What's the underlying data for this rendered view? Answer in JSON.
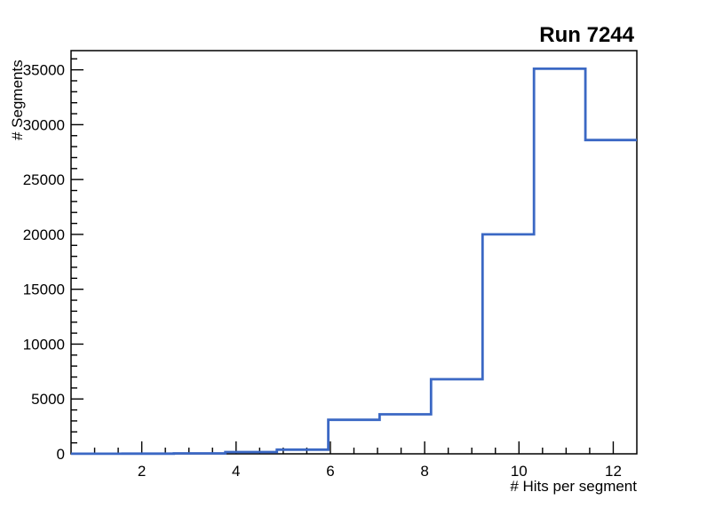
{
  "title": "Run 7244",
  "colors": {
    "histogram_line": "#3b68c4",
    "frame": "#000000",
    "background": "#ffffff"
  },
  "chart_data": {
    "type": "bar",
    "style": "step-outline-histogram",
    "title": "Run 7244",
    "xlabel": "# Hits per segment",
    "ylabel": "# Segments",
    "xlim": [
      0.5,
      12.5
    ],
    "ylim": [
      0,
      36750
    ],
    "bin_edges": [
      0.5,
      1.591,
      2.682,
      3.773,
      4.864,
      5.955,
      7.045,
      8.136,
      9.227,
      10.318,
      11.409,
      12.5
    ],
    "values": [
      5,
      15,
      40,
      160,
      380,
      3100,
      3600,
      6800,
      20000,
      35100,
      28600
    ],
    "x_major_ticks": [
      2,
      4,
      6,
      8,
      10,
      12
    ],
    "x_minor_step": 0.5,
    "y_major_ticks": [
      0,
      5000,
      10000,
      15000,
      20000,
      25000,
      30000,
      35000
    ],
    "y_minor_step": 1000,
    "grid": false,
    "legend": null
  }
}
